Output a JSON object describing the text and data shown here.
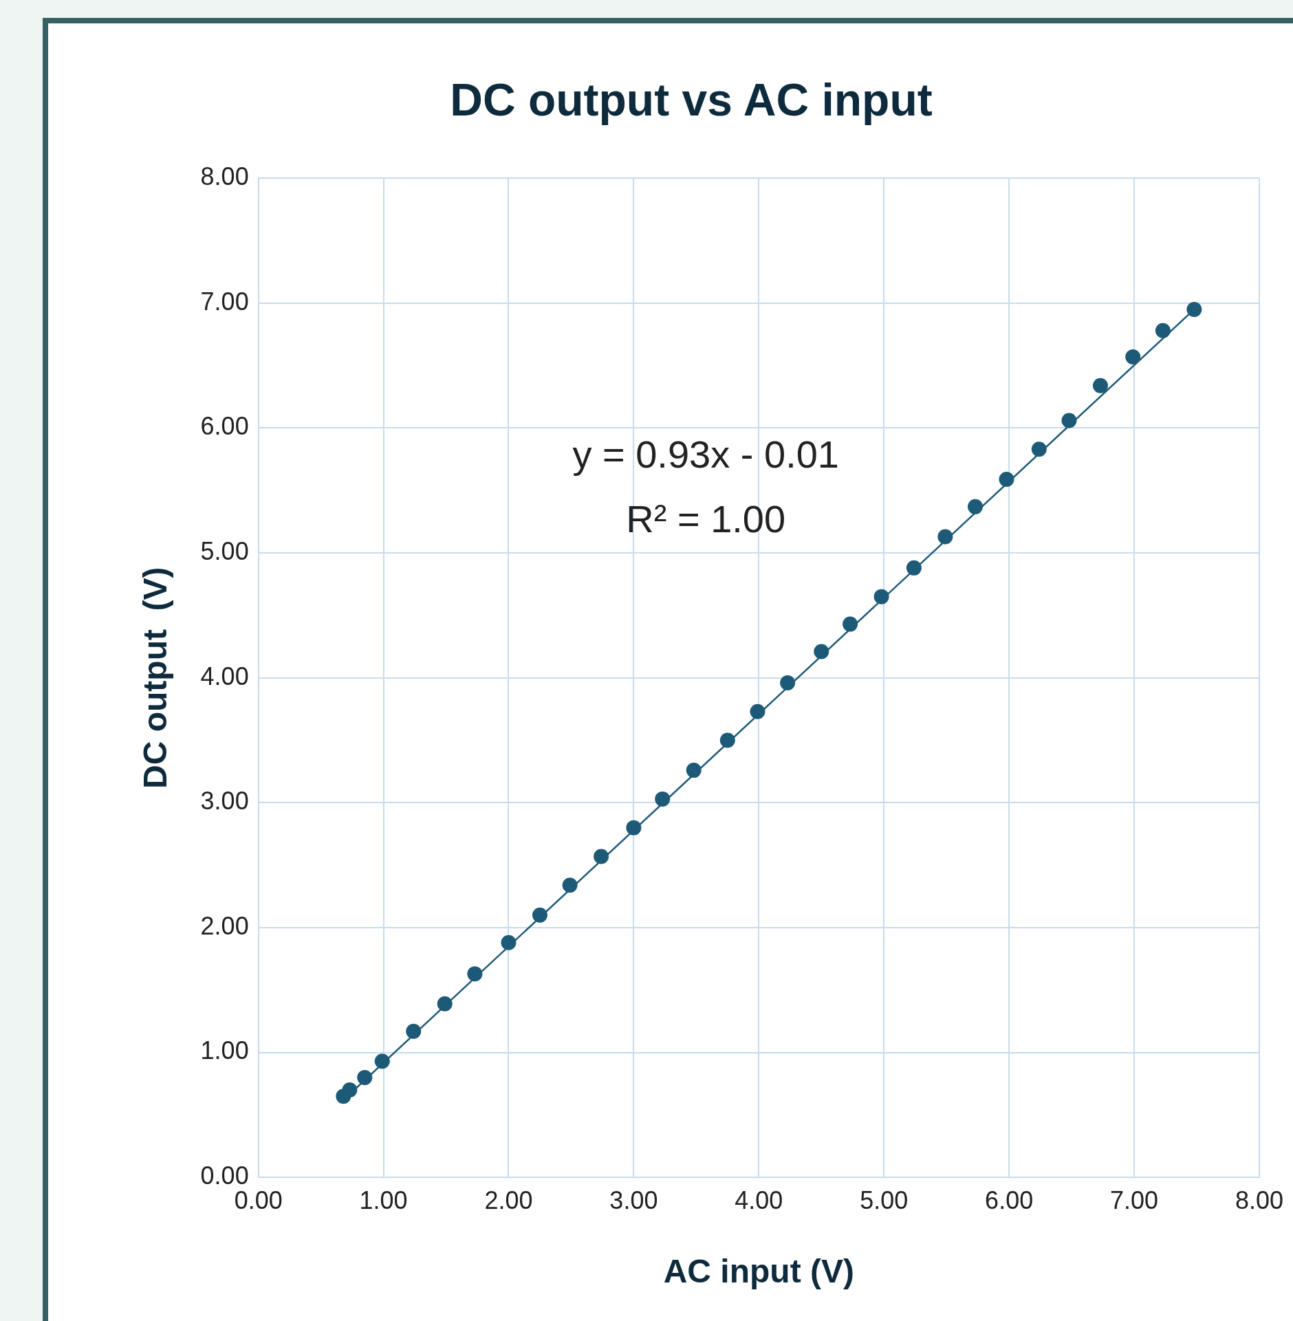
{
  "chart_data": {
    "type": "scatter",
    "title": "DC output vs AC input",
    "xlabel": "AC input (V)",
    "ylabel": "DC output  (V)",
    "xlim": [
      0,
      8
    ],
    "ylim": [
      0,
      8
    ],
    "xticks": [
      {
        "value": 0,
        "label": "0.00"
      },
      {
        "value": 1,
        "label": "1.00"
      },
      {
        "value": 2,
        "label": "2.00"
      },
      {
        "value": 3,
        "label": "3.00"
      },
      {
        "value": 4,
        "label": "4.00"
      },
      {
        "value": 5,
        "label": "5.00"
      },
      {
        "value": 6,
        "label": "6.00"
      },
      {
        "value": 7,
        "label": "7.00"
      },
      {
        "value": 8,
        "label": "8.00"
      }
    ],
    "yticks": [
      {
        "value": 0,
        "label": "0.00"
      },
      {
        "value": 1,
        "label": "1.00"
      },
      {
        "value": 2,
        "label": "2.00"
      },
      {
        "value": 3,
        "label": "3.00"
      },
      {
        "value": 4,
        "label": "4.00"
      },
      {
        "value": 5,
        "label": "5.00"
      },
      {
        "value": 6,
        "label": "6.00"
      },
      {
        "value": 7,
        "label": "7.00"
      },
      {
        "value": 8,
        "label": "8.00"
      }
    ],
    "grid": true,
    "legend": false,
    "marker": "circle",
    "series": [
      {
        "color": "#1d5a78",
        "x": [
          0.68,
          0.73,
          0.85,
          0.99,
          1.24,
          1.49,
          1.73,
          2.0,
          2.25,
          2.49,
          2.74,
          3.0,
          3.23,
          3.48,
          3.75,
          3.99,
          4.23,
          4.5,
          4.73,
          4.98,
          5.24,
          5.49,
          5.73,
          5.98,
          6.24,
          6.48,
          6.73,
          6.99,
          7.23,
          7.48
        ],
        "values": [
          0.65,
          0.7,
          0.8,
          0.93,
          1.17,
          1.39,
          1.63,
          1.88,
          2.1,
          2.34,
          2.57,
          2.8,
          3.03,
          3.26,
          3.5,
          3.73,
          3.96,
          4.21,
          4.43,
          4.65,
          4.88,
          5.13,
          5.37,
          5.59,
          5.83,
          6.06,
          6.34,
          6.57,
          6.78,
          6.95
        ]
      },
      {
        "type": "line",
        "color": "#1d5a78",
        "marker": "none",
        "x": [
          0.68,
          7.48
        ],
        "values": [
          0.62,
          6.95
        ]
      }
    ],
    "annotations": [
      "y = 0.93x - 0.01",
      "R² = 1.00"
    ]
  }
}
